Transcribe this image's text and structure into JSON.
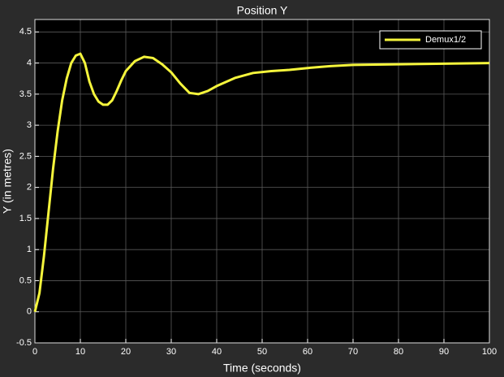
{
  "chart_data": {
    "type": "line",
    "title": "Position Y",
    "x_label": "Time (seconds)",
    "y_label": "Y (in metres)",
    "x": [
      0,
      1,
      2,
      3,
      4,
      5,
      6,
      7,
      8,
      9,
      10,
      11,
      12,
      13,
      14,
      15,
      16,
      17,
      18,
      19,
      20,
      22,
      24,
      26,
      28,
      30,
      32,
      34,
      36,
      38,
      40,
      44,
      48,
      52,
      56,
      60,
      65,
      70,
      80,
      90,
      100
    ],
    "series": [
      {
        "name": "Demux1/2",
        "color": "#f5f53c",
        "values": [
          0,
          0.3,
          0.9,
          1.6,
          2.3,
          2.9,
          3.4,
          3.75,
          4.0,
          4.12,
          4.15,
          4.0,
          3.7,
          3.5,
          3.38,
          3.33,
          3.33,
          3.4,
          3.55,
          3.72,
          3.87,
          4.03,
          4.1,
          4.08,
          3.98,
          3.85,
          3.67,
          3.52,
          3.5,
          3.55,
          3.63,
          3.76,
          3.84,
          3.87,
          3.89,
          3.92,
          3.95,
          3.97,
          3.98,
          3.99,
          4.0
        ]
      }
    ],
    "xlim": [
      0,
      100
    ],
    "xticks": [
      0,
      10,
      20,
      30,
      40,
      50,
      60,
      70,
      80,
      90,
      100
    ],
    "ylim": [
      -0.5,
      4.7
    ],
    "yticks": [
      -0.5,
      0,
      0.5,
      1,
      1.5,
      2,
      2.5,
      3,
      3.5,
      4,
      4.5
    ],
    "grid": true,
    "legend": "upper right"
  }
}
